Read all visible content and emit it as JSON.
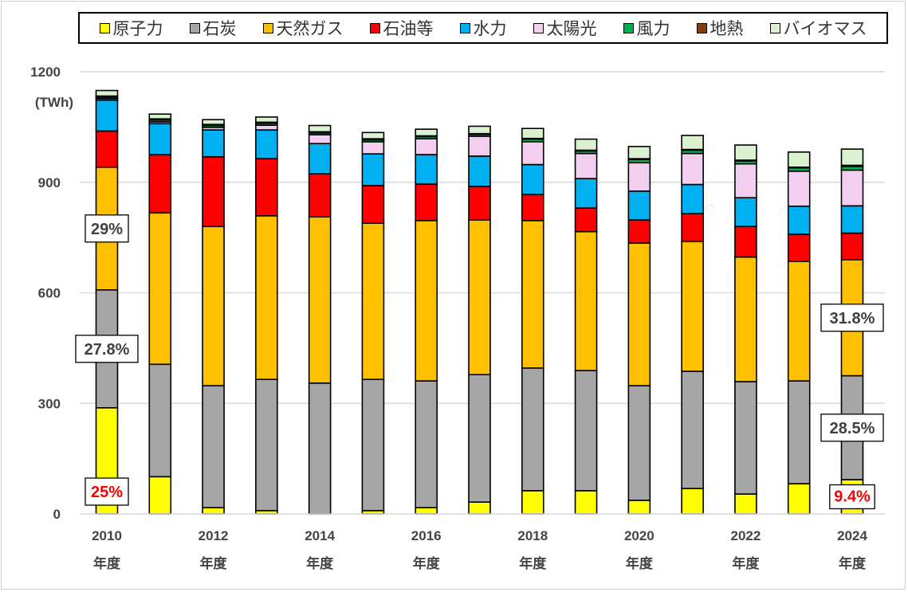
{
  "chart_data": {
    "type": "bar",
    "stacked": true,
    "title": "",
    "ylabel": "(TWh)",
    "xlabel": "",
    "ylim": [
      0,
      1200
    ],
    "yticks": [
      0,
      300,
      600,
      900,
      1200
    ],
    "grid": true,
    "legend_position": "top",
    "categories": [
      "2010",
      "2011",
      "2012",
      "2013",
      "2014",
      "2015",
      "2016",
      "2017",
      "2018",
      "2019",
      "2020",
      "2021",
      "2022",
      "2023",
      "2024"
    ],
    "x_tick_labels": [
      {
        "year": "2010",
        "unit": "年度"
      },
      {
        "year": "2012",
        "unit": "年度"
      },
      {
        "year": "2014",
        "unit": "年度"
      },
      {
        "year": "2016",
        "unit": "年度"
      },
      {
        "year": "2018",
        "unit": "年度"
      },
      {
        "year": "2020",
        "unit": "年度"
      },
      {
        "year": "2022",
        "unit": "年度"
      },
      {
        "year": "2024",
        "unit": "年度"
      }
    ],
    "series": [
      {
        "name": "原子力",
        "color": "#FFFF00",
        "values": [
          288,
          101,
          17,
          9,
          0,
          9,
          17,
          32,
          63,
          63,
          37,
          69,
          54,
          82,
          93
        ]
      },
      {
        "name": "石炭",
        "color": "#A6A6A6",
        "values": [
          320,
          305,
          331,
          356,
          355,
          356,
          344,
          346,
          333,
          326,
          311,
          318,
          305,
          279,
          282
        ]
      },
      {
        "name": "天然ガス",
        "color": "#FFC000",
        "values": [
          333,
          411,
          432,
          444,
          451,
          424,
          435,
          420,
          400,
          377,
          387,
          352,
          338,
          324,
          315
        ]
      },
      {
        "name": "石油等",
        "color": "#FF0000",
        "values": [
          98,
          158,
          189,
          155,
          117,
          102,
          99,
          91,
          71,
          64,
          63,
          76,
          83,
          74,
          72
        ]
      },
      {
        "name": "水力",
        "color": "#00B0F0",
        "values": [
          84,
          84,
          73,
          78,
          82,
          86,
          80,
          82,
          81,
          80,
          78,
          79,
          78,
          76,
          74
        ]
      },
      {
        "name": "太陽光",
        "color": "#F2CEEF",
        "values": [
          4,
          5,
          7,
          13,
          24,
          33,
          43,
          54,
          62,
          68,
          77,
          84,
          92,
          95,
          97
        ]
      },
      {
        "name": "風力",
        "color": "#00B050",
        "values": [
          4,
          5,
          5,
          5,
          5,
          5,
          6,
          5,
          7,
          7,
          9,
          9,
          8,
          9,
          10
        ]
      },
      {
        "name": "地熱",
        "color": "#843C0C",
        "values": [
          3,
          3,
          3,
          3,
          3,
          3,
          2,
          2,
          2,
          2,
          2,
          2,
          2,
          2,
          3
        ]
      },
      {
        "name": "バイオマス",
        "color": "#DAF2D0",
        "values": [
          15,
          13,
          13,
          14,
          17,
          17,
          18,
          20,
          27,
          30,
          33,
          38,
          41,
          41,
          44
        ]
      }
    ],
    "annotations": [
      {
        "text": "29%",
        "category": "2010",
        "series": "天然ガス",
        "color": "#404040"
      },
      {
        "text": "27.8%",
        "category": "2010",
        "series": "石炭",
        "color": "#404040"
      },
      {
        "text": "25%",
        "category": "2010",
        "series": "原子力",
        "color": "#FF0000"
      },
      {
        "text": "31.8%",
        "category": "2024",
        "series": "天然ガス",
        "color": "#404040"
      },
      {
        "text": "28.5%",
        "category": "2024",
        "series": "石炭",
        "color": "#404040"
      },
      {
        "text": "9.4%",
        "category": "2024",
        "series": "原子力",
        "color": "#FF0000"
      }
    ]
  }
}
